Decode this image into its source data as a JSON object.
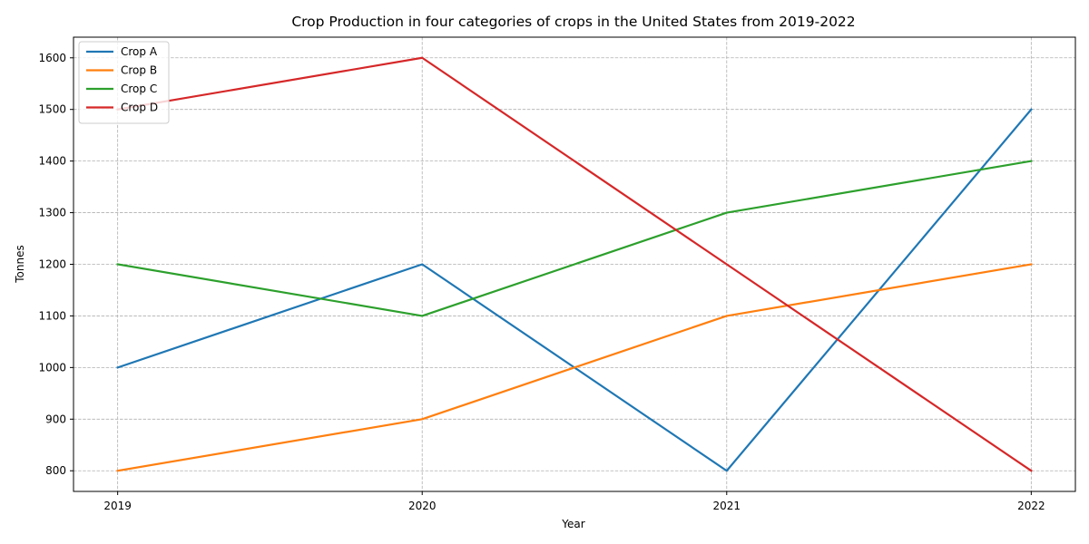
{
  "chart_data": {
    "type": "line",
    "title": "Crop Production in four categories of crops in the United States from 2019-2022",
    "xlabel": "Year",
    "ylabel": "Tonnes",
    "categories": [
      "2019",
      "2020",
      "2021",
      "2022"
    ],
    "x": [
      2019,
      2020,
      2021,
      2022
    ],
    "xlim": [
      2018.855,
      2022.145
    ],
    "ylim": [
      760,
      1640
    ],
    "yticks": [
      800,
      900,
      1000,
      1100,
      1200,
      1300,
      1400,
      1500,
      1600
    ],
    "grid": true,
    "legend_position": "upper-left",
    "series": [
      {
        "name": "Crop A",
        "color": "#1f77b4",
        "values": [
          1000,
          1200,
          800,
          1500
        ]
      },
      {
        "name": "Crop B",
        "color": "#ff7f0e",
        "values": [
          800,
          900,
          1100,
          1200
        ]
      },
      {
        "name": "Crop C",
        "color": "#2ca02c",
        "values": [
          1200,
          1100,
          1300,
          1400
        ]
      },
      {
        "name": "Crop D",
        "color": "#d62728",
        "values": [
          1500,
          1600,
          1200,
          800
        ]
      }
    ]
  }
}
